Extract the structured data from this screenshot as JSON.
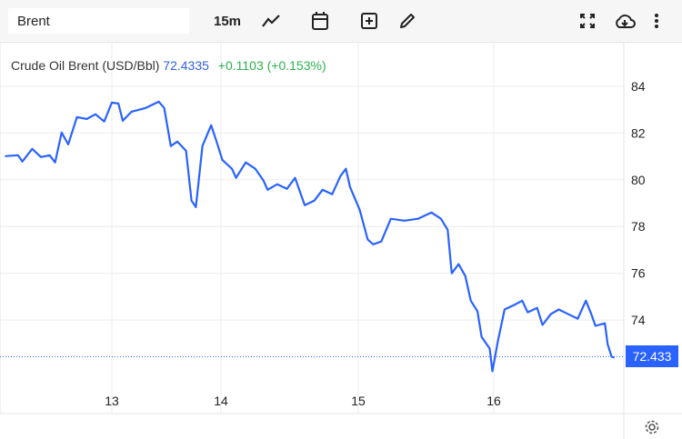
{
  "toolbar": {
    "symbol_value": "Brent",
    "interval": "15m",
    "icons": [
      "chart-type-icon",
      "calendar-icon",
      "add-indicator-icon",
      "draw-pencil-icon",
      "fullscreen-icon",
      "cloud-download-icon",
      "more-vertical-icon"
    ]
  },
  "legend": {
    "name": "Crude Oil Brent (USD/Bbl)",
    "price": "72.4335",
    "change": "+0.1103 (+0.153%)"
  },
  "price_tag": "72.433",
  "colors": {
    "line": "#2962ff",
    "change": "#2bb24c",
    "grid": "#eeeeee"
  },
  "chart_data": {
    "type": "line",
    "ylim": [
      70,
      85.9
    ],
    "y_ticks": [
      "74",
      "76",
      "78",
      "80",
      "82",
      "84"
    ],
    "x_ticks": [
      "13",
      "14",
      "15",
      "16"
    ],
    "grid": true,
    "last_price": 72.4335,
    "x": [
      12.02,
      12.14,
      12.18,
      12.27,
      12.35,
      12.43,
      12.48,
      12.54,
      12.6,
      12.68,
      12.77,
      12.85,
      12.93,
      13.0,
      13.06,
      13.1,
      13.18,
      13.31,
      13.43,
      13.48,
      13.54,
      13.6,
      13.68,
      13.73,
      13.77,
      13.83,
      13.91,
      13.96,
      14.01,
      14.08,
      14.11,
      14.18,
      14.25,
      14.31,
      14.34,
      14.41,
      14.48,
      14.54,
      14.61,
      14.68,
      14.74,
      14.81,
      14.87,
      14.91,
      14.94,
      15.01,
      15.07,
      15.11,
      15.17,
      15.24,
      15.34,
      15.44,
      15.54,
      15.61,
      15.66,
      15.69,
      15.74,
      15.79,
      15.83,
      15.88,
      15.91,
      15.97,
      15.99,
      16.03,
      16.08,
      16.15,
      16.21,
      16.25,
      16.32,
      16.36,
      16.42,
      16.48,
      16.55,
      16.62,
      16.68,
      16.72,
      16.75,
      16.82,
      16.84,
      16.87,
      16.89
    ],
    "y": [
      81.01,
      81.05,
      80.78,
      81.32,
      80.97,
      81.05,
      80.74,
      82.02,
      81.51,
      82.68,
      82.6,
      82.8,
      82.49,
      83.3,
      83.26,
      82.52,
      82.91,
      83.07,
      83.34,
      83.07,
      81.44,
      81.63,
      81.24,
      79.11,
      78.83,
      81.44,
      82.33,
      81.63,
      80.85,
      80.47,
      80.08,
      80.74,
      80.47,
      79.96,
      79.57,
      79.81,
      79.61,
      80.08,
      78.91,
      79.11,
      79.57,
      79.38,
      80.16,
      80.47,
      79.69,
      78.72,
      77.44,
      77.24,
      77.36,
      78.33,
      78.25,
      78.33,
      78.6,
      78.33,
      77.86,
      76.0,
      76.39,
      75.88,
      74.83,
      74.37,
      73.28,
      72.78,
      71.81,
      73.09,
      74.45,
      74.64,
      74.83,
      74.33,
      74.52,
      73.79,
      74.25,
      74.45,
      74.25,
      74.06,
      74.83,
      74.25,
      73.75,
      73.86,
      72.97,
      72.43,
      72.39
    ]
  }
}
